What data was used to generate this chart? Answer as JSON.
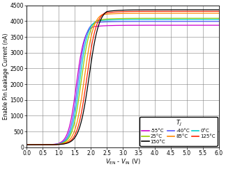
{
  "ylabel": "Enable Pin Leakage Current (nA)",
  "xlim": [
    0,
    6
  ],
  "ylim": [
    0,
    4500
  ],
  "xticks": [
    0,
    0.5,
    1,
    1.5,
    2,
    2.5,
    3,
    3.5,
    4,
    4.5,
    5,
    5.5,
    6
  ],
  "yticks": [
    0,
    500,
    1000,
    1500,
    2000,
    2500,
    3000,
    3500,
    4000,
    4500
  ],
  "series": [
    {
      "label": "-55°C",
      "color": "#cc00cc",
      "plateau": 3870,
      "peak": 3870,
      "midpoint": 1.55,
      "steepness": 8.0
    },
    {
      "label": "-40°C",
      "color": "#5555ff",
      "plateau": 3990,
      "peak": 4000,
      "midpoint": 1.6,
      "steepness": 8.0
    },
    {
      "label": "0°C",
      "color": "#00cccc",
      "plateau": 4050,
      "peak": 4060,
      "midpoint": 1.65,
      "steepness": 7.8
    },
    {
      "label": "25°C",
      "color": "#99cc00",
      "plateau": 4090,
      "peak": 4100,
      "midpoint": 1.7,
      "steepness": 7.5
    },
    {
      "label": "85°C",
      "color": "#ff8800",
      "plateau": 4250,
      "peak": 4290,
      "midpoint": 1.8,
      "steepness": 7.0
    },
    {
      "label": "125°C",
      "color": "#ff2200",
      "plateau": 4310,
      "peak": 4350,
      "midpoint": 1.88,
      "steepness": 6.8
    },
    {
      "label": "150°C",
      "color": "#000000",
      "plateau": 4360,
      "peak": 4420,
      "midpoint": 1.95,
      "steepness": 6.5
    }
  ],
  "base_current": 80
}
